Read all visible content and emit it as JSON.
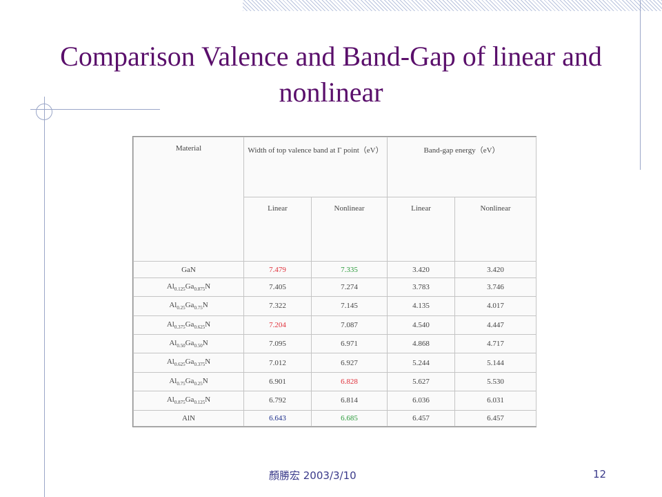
{
  "slide": {
    "title": "Comparison Valence and Band-Gap of linear and nonlinear",
    "footer": "顏勝宏 2003/3/10",
    "page_number": "12"
  },
  "table": {
    "header": {
      "material": "Material",
      "valence": "Width of top valence band at Γ point（eV）",
      "bandgap": "Band-gap energy（eV）",
      "linear": "Linear",
      "nonlinear": "Nonlinear"
    },
    "rows": [
      {
        "el1": "GaN",
        "sub1": "",
        "el2": "",
        "sub2": "",
        "el3": "",
        "v_lin": "7.479",
        "v_nonlin": "7.335",
        "b_lin": "3.420",
        "b_nonlin": "3.420"
      },
      {
        "el1": "Al",
        "sub1": "0.125",
        "el2": "Ga",
        "sub2": "0.875",
        "el3": "N",
        "v_lin": "7.405",
        "v_nonlin": "7.274",
        "b_lin": "3.783",
        "b_nonlin": "3.746"
      },
      {
        "el1": "Al",
        "sub1": "0.25",
        "el2": "Ga",
        "sub2": "0.75",
        "el3": "N",
        "v_lin": "7.322",
        "v_nonlin": "7.145",
        "b_lin": "4.135",
        "b_nonlin": "4.017"
      },
      {
        "el1": "Al",
        "sub1": "0.375",
        "el2": "Ga",
        "sub2": "0.625",
        "el3": "N",
        "v_lin": "7.204",
        "v_nonlin": "7.087",
        "b_lin": "4.540",
        "b_nonlin": "4.447"
      },
      {
        "el1": "Al",
        "sub1": "0.50",
        "el2": "Ga",
        "sub2": "0.50",
        "el3": "N",
        "v_lin": "7.095",
        "v_nonlin": "6.971",
        "b_lin": "4.868",
        "b_nonlin": "4.717"
      },
      {
        "el1": "Al",
        "sub1": "0.625",
        "el2": "Ga",
        "sub2": "0.375",
        "el3": "N",
        "v_lin": "7.012",
        "v_nonlin": "6.927",
        "b_lin": "5.244",
        "b_nonlin": "5.144"
      },
      {
        "el1": "Al",
        "sub1": "0.75",
        "el2": "Ga",
        "sub2": "0.25",
        "el3": "N",
        "v_lin": "6.901",
        "v_nonlin": "6.828",
        "b_lin": "5.627",
        "b_nonlin": "5.530"
      },
      {
        "el1": "Al",
        "sub1": "0.875",
        "el2": "Ga",
        "sub2": "0.125",
        "el3": "N",
        "v_lin": "6.792",
        "v_nonlin": "6.814",
        "b_lin": "6.036",
        "b_nonlin": "6.031"
      },
      {
        "el1": "AlN",
        "sub1": "",
        "el2": "",
        "sub2": "",
        "el3": "",
        "v_lin": "6.643",
        "v_nonlin": "6.685",
        "b_lin": "6.457",
        "b_nonlin": "6.457"
      }
    ],
    "highlight_colors": {
      "red": "#e0303a",
      "green": "#2a9a3a",
      "blue": "#1a2c8a"
    }
  }
}
